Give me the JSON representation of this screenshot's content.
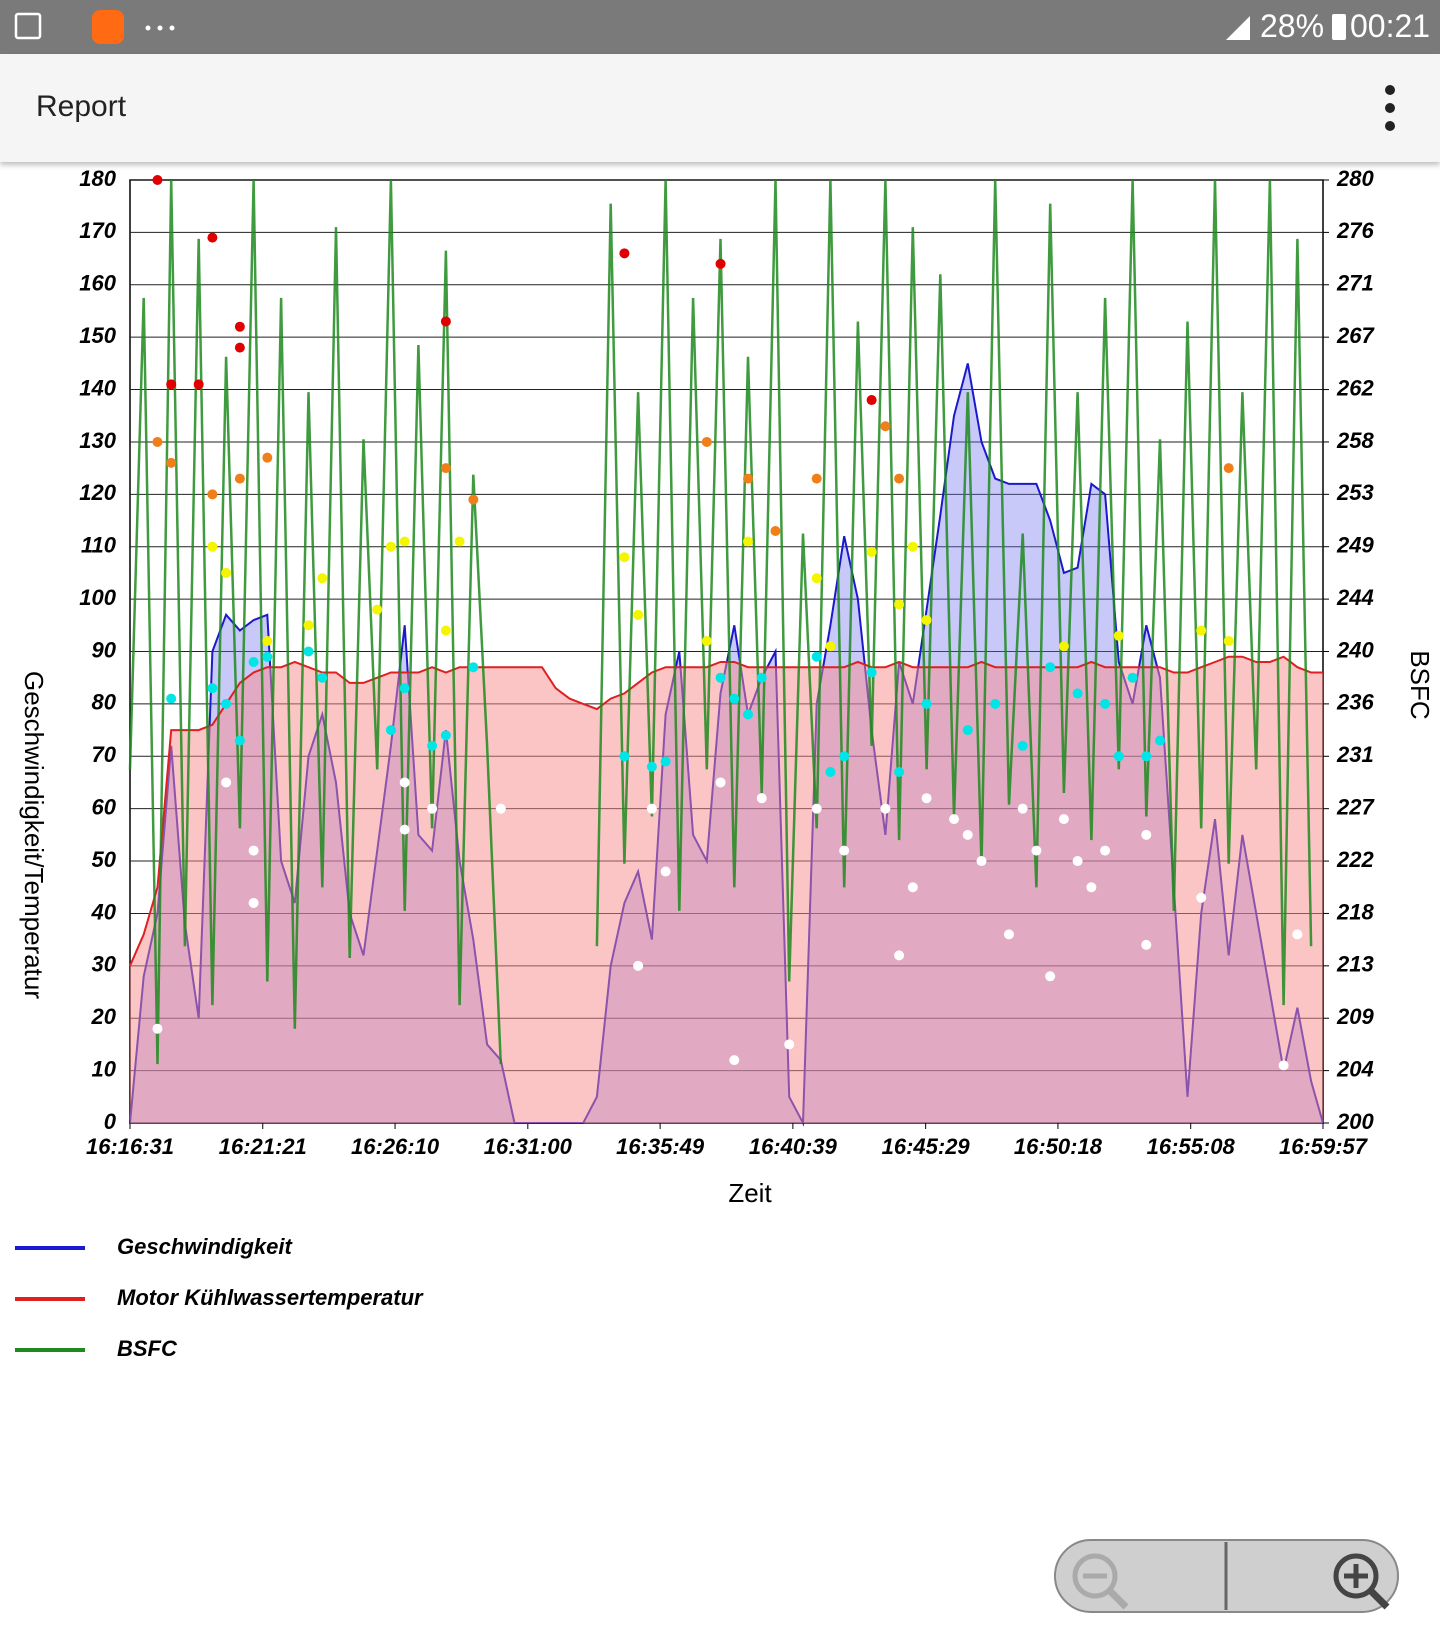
{
  "status_bar": {
    "battery": "28%",
    "time": "00:21"
  },
  "app_bar": {
    "title": "Report"
  },
  "chart_data": {
    "type": "line",
    "x_label": "Zeit",
    "y_label": "Geschwindigkeit/Temperatur",
    "y2_label": "BSFC",
    "xlim": [
      "16:16:31",
      "16:59:57"
    ],
    "xticks": [
      "16:16:31",
      "16:21:21",
      "16:26:10",
      "16:31:00",
      "16:35:49",
      "16:40:39",
      "16:45:29",
      "16:50:18",
      "16:55:08",
      "16:59:57"
    ],
    "ylim": [
      0,
      180
    ],
    "yticks": [
      0,
      10,
      20,
      30,
      40,
      50,
      60,
      70,
      80,
      90,
      100,
      110,
      120,
      130,
      140,
      150,
      160,
      170,
      180
    ],
    "y2lim": [
      200,
      280
    ],
    "y2ticks": [
      200,
      {
        "value": 204.444,
        "label": "204"
      },
      {
        "value": 208.889,
        "label": "209"
      },
      {
        "value": 213.333,
        "label": "213"
      },
      {
        "value": 217.778,
        "label": "218"
      },
      {
        "value": 222.222,
        "label": "222"
      },
      {
        "value": 226.667,
        "label": "227"
      },
      {
        "value": 231.111,
        "label": "231"
      },
      {
        "value": 235.556,
        "label": "236"
      },
      240,
      {
        "value": 244.444,
        "label": "244"
      },
      {
        "value": 248.889,
        "label": "249"
      },
      {
        "value": 253.333,
        "label": "253"
      },
      {
        "value": 257.778,
        "label": "258"
      },
      {
        "value": 262.222,
        "label": "262"
      },
      {
        "value": 266.667,
        "label": "267"
      },
      {
        "value": 271.111,
        "label": "271"
      },
      {
        "value": 275.556,
        "label": "276"
      },
      280
    ],
    "grid": true,
    "x": [
      "16:16:31",
      "16:17:01",
      "16:17:31",
      "16:18:01",
      "16:18:31",
      "16:19:01",
      "16:19:31",
      "16:20:01",
      "16:20:31",
      "16:21:01",
      "16:21:31",
      "16:22:01",
      "16:22:31",
      "16:23:01",
      "16:23:31",
      "16:24:01",
      "16:24:31",
      "16:25:01",
      "16:25:31",
      "16:26:01",
      "16:26:31",
      "16:27:01",
      "16:27:31",
      "16:28:01",
      "16:28:31",
      "16:29:01",
      "16:29:31",
      "16:30:01",
      "16:30:31",
      "16:31:01",
      "16:31:31",
      "16:32:01",
      "16:32:31",
      "16:33:01",
      "16:33:31",
      "16:34:01",
      "16:34:31",
      "16:35:01",
      "16:35:31",
      "16:36:01",
      "16:36:31",
      "16:37:01",
      "16:37:31",
      "16:38:01",
      "16:38:31",
      "16:39:01",
      "16:39:31",
      "16:40:01",
      "16:40:31",
      "16:41:01",
      "16:41:31",
      "16:42:01",
      "16:42:31",
      "16:43:01",
      "16:43:31",
      "16:44:01",
      "16:44:31",
      "16:45:01",
      "16:45:31",
      "16:46:01",
      "16:46:31",
      "16:47:01",
      "16:47:31",
      "16:48:01",
      "16:48:31",
      "16:49:01",
      "16:49:31",
      "16:50:01",
      "16:50:31",
      "16:51:01",
      "16:51:31",
      "16:52:01",
      "16:52:31",
      "16:53:01",
      "16:53:31",
      "16:54:01",
      "16:54:31",
      "16:55:01",
      "16:55:31",
      "16:56:01",
      "16:56:31",
      "16:57:01",
      "16:57:31",
      "16:58:01",
      "16:58:31",
      "16:59:01",
      "16:59:31",
      "16:59:57"
    ],
    "series": [
      {
        "name": "Geschwindigkeit",
        "color": "#1a1acc",
        "fill": "rgba(110,110,240,0.38)",
        "values": [
          0,
          28,
          40,
          72,
          38,
          20,
          90,
          97,
          94,
          96,
          97,
          50,
          42,
          70,
          78,
          65,
          40,
          32,
          52,
          72,
          95,
          55,
          52,
          75,
          50,
          35,
          15,
          12,
          0,
          0,
          0,
          0,
          0,
          0,
          5,
          30,
          42,
          48,
          35,
          78,
          90,
          55,
          50,
          82,
          95,
          78,
          85,
          90,
          5,
          0,
          80,
          95,
          112,
          100,
          75,
          55,
          88,
          80,
          98,
          116,
          135,
          145,
          130,
          123,
          122,
          122,
          122,
          115,
          105,
          106,
          122,
          120,
          88,
          80,
          95,
          85,
          45,
          5,
          40,
          58,
          32,
          55,
          40,
          25,
          10,
          22,
          8,
          0
        ]
      },
      {
        "name": "Motor Kühlwassertemperatur",
        "color": "#e02020",
        "fill": "rgba(250,140,140,0.5)",
        "values": [
          30,
          36,
          45,
          75,
          75,
          75,
          76,
          80,
          84,
          86,
          87,
          87,
          88,
          87,
          86,
          86,
          84,
          84,
          85,
          86,
          86,
          86,
          87,
          86,
          87,
          87,
          87,
          87,
          87,
          87,
          87,
          83,
          81,
          80,
          79,
          81,
          82,
          84,
          86,
          87,
          87,
          87,
          87,
          88,
          88,
          87,
          87,
          87,
          87,
          87,
          87,
          87,
          87,
          88,
          87,
          87,
          88,
          87,
          87,
          87,
          87,
          87,
          88,
          87,
          87,
          87,
          87,
          87,
          87,
          87,
          88,
          87,
          87,
          87,
          87,
          87,
          86,
          86,
          87,
          88,
          89,
          89,
          88,
          88,
          89,
          87,
          86,
          86
        ]
      },
      {
        "name": "BSFC",
        "color": "#1e8a1e",
        "axis": "y2",
        "values": [
          230,
          270,
          205,
          280,
          215,
          275,
          210,
          265,
          225,
          280,
          212,
          270,
          208,
          262,
          220,
          276,
          214,
          258,
          230,
          280,
          218,
          266,
          225,
          274,
          210,
          255,
          232,
          205,
          null,
          null,
          null,
          null,
          null,
          null,
          215,
          278,
          222,
          262,
          226,
          280,
          218,
          270,
          230,
          275,
          220,
          265,
          228,
          280,
          212,
          250,
          225,
          280,
          220,
          268,
          232,
          280,
          224,
          276,
          230,
          272,
          226,
          262,
          222,
          280,
          227,
          250,
          220,
          278,
          228,
          262,
          224,
          270,
          230,
          280,
          226,
          258,
          218,
          268,
          225,
          280,
          222,
          262,
          230,
          280,
          210,
          275,
          215,
          null
        ]
      }
    ],
    "points": [
      {
        "color": "#e00000",
        "x": [
          "16:17:31",
          "16:18:01",
          "16:19:01",
          "16:19:31",
          "16:20:31",
          "16:20:31",
          "16:28:01",
          "16:34:31",
          "16:38:01",
          "16:43:31"
        ],
        "values": [
          180,
          141,
          141,
          169,
          148,
          152,
          153,
          166,
          164,
          138
        ]
      },
      {
        "color": "#f07f1a",
        "x": [
          "16:17:31",
          "16:18:01",
          "16:19:31",
          "16:20:31",
          "16:21:31",
          "16:28:01",
          "16:29:01",
          "16:37:31",
          "16:39:01",
          "16:40:01",
          "16:41:31",
          "16:44:01",
          "16:44:31",
          "16:56:31"
        ],
        "values": [
          130,
          126,
          120,
          123,
          127,
          125,
          119,
          130,
          123,
          113,
          123,
          133,
          123,
          125
        ]
      },
      {
        "color": "#f5f500",
        "x": [
          "16:19:31",
          "16:20:01",
          "16:21:31",
          "16:23:01",
          "16:23:31",
          "16:25:31",
          "16:26:01",
          "16:26:31",
          "16:28:01",
          "16:28:31",
          "16:34:31",
          "16:35:01",
          "16:37:31",
          "16:39:01",
          "16:41:31",
          "16:42:01",
          "16:43:31",
          "16:44:31",
          "16:45:01",
          "16:45:31",
          "16:50:31",
          "16:52:31",
          "16:55:31",
          "16:56:31"
        ],
        "values": [
          110,
          105,
          92,
          95,
          104,
          98,
          110,
          111,
          94,
          111,
          108,
          97,
          92,
          111,
          104,
          91,
          109,
          99,
          110,
          96,
          91,
          93,
          94,
          92
        ]
      },
      {
        "color": "#00e5e5",
        "x": [
          "16:18:01",
          "16:19:31",
          "16:20:01",
          "16:20:31",
          "16:21:01",
          "16:21:31",
          "16:23:01",
          "16:23:31",
          "16:26:01",
          "16:26:31",
          "16:27:31",
          "16:28:01",
          "16:29:01",
          "16:34:31",
          "16:35:31",
          "16:36:01",
          "16:38:01",
          "16:38:31",
          "16:39:01",
          "16:39:31",
          "16:41:31",
          "16:42:01",
          "16:42:31",
          "16:43:31",
          "16:44:31",
          "16:45:31",
          "16:47:01",
          "16:48:01",
          "16:49:01",
          "16:50:01",
          "16:51:01",
          "16:52:01",
          "16:52:31",
          "16:53:01",
          "16:54:01",
          "16:53:31"
        ],
        "values": [
          81,
          83,
          80,
          73,
          88,
          89,
          90,
          85,
          75,
          83,
          72,
          74,
          87,
          70,
          68,
          69,
          85,
          81,
          78,
          85,
          89,
          67,
          70,
          86,
          67,
          80,
          75,
          80,
          72,
          87,
          82,
          80,
          70,
          85,
          73,
          70
        ]
      },
      {
        "color": "#ffffff",
        "x": [
          "16:17:31",
          "16:20:01",
          "16:21:01",
          "16:21:01",
          "16:26:31",
          "16:26:31",
          "16:27:31",
          "16:30:01",
          "16:35:01",
          "16:35:31",
          "16:36:01",
          "16:38:01",
          "16:38:31",
          "16:39:31",
          "16:40:31",
          "16:41:31",
          "16:42:31",
          "16:44:01",
          "16:44:31",
          "16:45:01",
          "16:45:31",
          "16:46:31",
          "16:47:01",
          "16:47:31",
          "16:48:31",
          "16:49:01",
          "16:49:31",
          "16:50:01",
          "16:50:31",
          "16:51:01",
          "16:51:31",
          "16:52:01",
          "16:53:31",
          "16:53:31",
          "16:55:31",
          "16:58:31",
          "16:59:01"
        ],
        "values": [
          18,
          65,
          52,
          42,
          65,
          56,
          60,
          60,
          30,
          60,
          48,
          65,
          12,
          62,
          15,
          60,
          52,
          60,
          32,
          45,
          62,
          58,
          55,
          50,
          36,
          60,
          52,
          28,
          58,
          50,
          45,
          52,
          34,
          55,
          43,
          11,
          36
        ]
      }
    ]
  }
}
